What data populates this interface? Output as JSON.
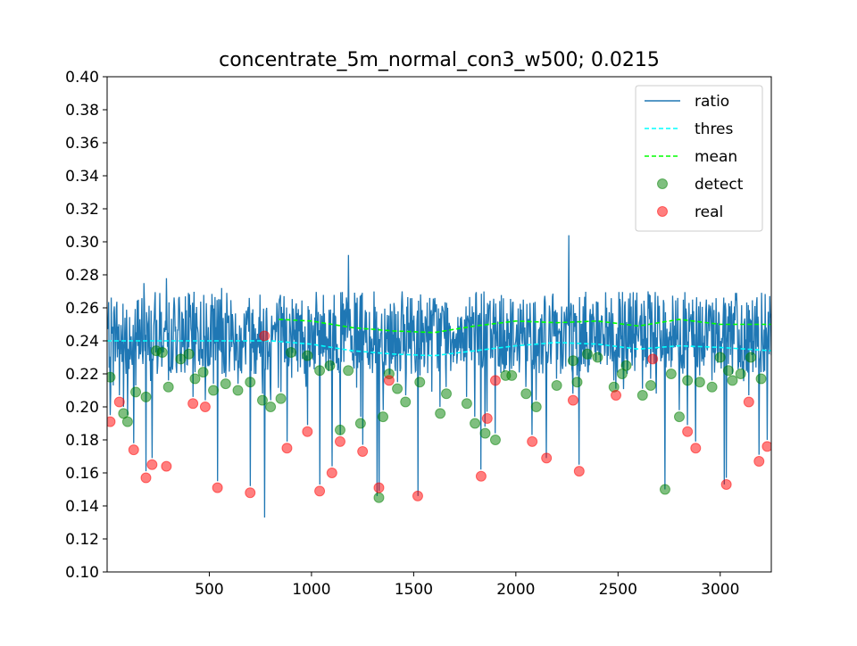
{
  "chart_data": {
    "type": "line",
    "title": "concentrate_5m_normal_con3_w500; 0.0215",
    "xlabel": "",
    "ylabel": "",
    "xlim": [
      0,
      3250
    ],
    "ylim": [
      0.1,
      0.4
    ],
    "x_ticks": [
      500,
      1000,
      1500,
      2000,
      2500,
      3000
    ],
    "x_tick_labels": [
      "500",
      "1000",
      "1500",
      "2000",
      "2500",
      "3000"
    ],
    "y_ticks": [
      0.1,
      0.12,
      0.14,
      0.16,
      0.18,
      0.2,
      0.22,
      0.24,
      0.26,
      0.28,
      0.3,
      0.32,
      0.34,
      0.36,
      0.38,
      0.4
    ],
    "y_tick_labels": [
      "0.10",
      "0.12",
      "0.14",
      "0.16",
      "0.18",
      "0.20",
      "0.22",
      "0.24",
      "0.26",
      "0.28",
      "0.30",
      "0.32",
      "0.34",
      "0.36",
      "0.38",
      "0.40"
    ],
    "grid": false,
    "legend_position": "top-right",
    "legend": [
      {
        "label": "ratio",
        "kind": "line",
        "color": "#1f77b4"
      },
      {
        "label": "thres",
        "kind": "dashed",
        "color": "#00ffff"
      },
      {
        "label": "mean",
        "kind": "dashed",
        "color": "#00ff00"
      },
      {
        "label": "detect",
        "kind": "marker",
        "color": "#008000"
      },
      {
        "label": "real",
        "kind": "marker",
        "color": "#ff0000"
      }
    ],
    "ratio_series": {
      "name": "ratio",
      "x_start": 0,
      "x_end": 3250,
      "n_points": 1300,
      "base_level": 0.245,
      "noise_amplitude": 0.025,
      "spikes": [
        {
          "x": 180,
          "y": 0.275
        },
        {
          "x": 290,
          "y": 0.278
        },
        {
          "x": 560,
          "y": 0.272
        },
        {
          "x": 770,
          "y": 0.133
        },
        {
          "x": 1180,
          "y": 0.292
        },
        {
          "x": 1320,
          "y": 0.146
        },
        {
          "x": 1520,
          "y": 0.146
        },
        {
          "x": 2260,
          "y": 0.304
        },
        {
          "x": 2150,
          "y": 0.169
        },
        {
          "x": 2730,
          "y": 0.15
        },
        {
          "x": 3020,
          "y": 0.153
        }
      ]
    },
    "thres_series": {
      "name": "thres",
      "x": [
        0,
        200,
        400,
        600,
        800,
        1000,
        1200,
        1400,
        1600,
        1800,
        2000,
        2200,
        2400,
        2600,
        2800,
        3000,
        3250
      ],
      "y": [
        0.24,
        0.24,
        0.24,
        0.24,
        0.24,
        0.238,
        0.234,
        0.232,
        0.231,
        0.234,
        0.237,
        0.239,
        0.238,
        0.235,
        0.237,
        0.236,
        0.234
      ]
    },
    "mean_series": {
      "name": "mean",
      "x": [
        840,
        1000,
        1200,
        1400,
        1600,
        1800,
        2000,
        2200,
        2400,
        2600,
        2800,
        3000,
        3250
      ],
      "y": [
        0.253,
        0.252,
        0.248,
        0.246,
        0.245,
        0.249,
        0.252,
        0.251,
        0.252,
        0.249,
        0.253,
        0.25,
        0.25
      ]
    },
    "detect_points": {
      "name": "detect",
      "x": [
        15,
        80,
        100,
        140,
        190,
        240,
        270,
        300,
        360,
        400,
        430,
        470,
        520,
        580,
        640,
        700,
        760,
        800,
        850,
        900,
        980,
        1040,
        1090,
        1140,
        1180,
        1240,
        1330,
        1350,
        1380,
        1420,
        1460,
        1530,
        1630,
        1660,
        1760,
        1800,
        1850,
        1900,
        1950,
        1980,
        2050,
        2100,
        2200,
        2280,
        2300,
        2350,
        2400,
        2480,
        2520,
        2540,
        2620,
        2660,
        2730,
        2760,
        2800,
        2840,
        2900,
        2960,
        3000,
        3040,
        3060,
        3100,
        3150,
        3200
      ],
      "y": [
        0.218,
        0.196,
        0.191,
        0.209,
        0.206,
        0.234,
        0.233,
        0.212,
        0.229,
        0.232,
        0.217,
        0.221,
        0.21,
        0.214,
        0.21,
        0.215,
        0.204,
        0.2,
        0.205,
        0.233,
        0.231,
        0.222,
        0.225,
        0.186,
        0.222,
        0.19,
        0.145,
        0.194,
        0.22,
        0.211,
        0.203,
        0.215,
        0.196,
        0.208,
        0.202,
        0.19,
        0.184,
        0.18,
        0.219,
        0.219,
        0.208,
        0.2,
        0.213,
        0.228,
        0.215,
        0.232,
        0.23,
        0.212,
        0.22,
        0.225,
        0.207,
        0.213,
        0.15,
        0.22,
        0.194,
        0.216,
        0.215,
        0.212,
        0.23,
        0.222,
        0.216,
        0.22,
        0.23,
        0.217
      ]
    },
    "real_points": {
      "name": "real",
      "x": [
        15,
        60,
        130,
        190,
        220,
        290,
        420,
        480,
        540,
        700,
        770,
        880,
        980,
        1040,
        1100,
        1140,
        1250,
        1330,
        1380,
        1520,
        1830,
        1860,
        1900,
        2080,
        2150,
        2280,
        2310,
        2490,
        2670,
        2840,
        2880,
        3030,
        3140,
        3190,
        3230
      ],
      "y": [
        0.191,
        0.203,
        0.174,
        0.157,
        0.165,
        0.164,
        0.202,
        0.2,
        0.151,
        0.148,
        0.243,
        0.175,
        0.185,
        0.149,
        0.16,
        0.179,
        0.173,
        0.151,
        0.216,
        0.146,
        0.158,
        0.193,
        0.216,
        0.179,
        0.169,
        0.204,
        0.161,
        0.207,
        0.229,
        0.185,
        0.175,
        0.153,
        0.203,
        0.167,
        0.176
      ]
    }
  }
}
